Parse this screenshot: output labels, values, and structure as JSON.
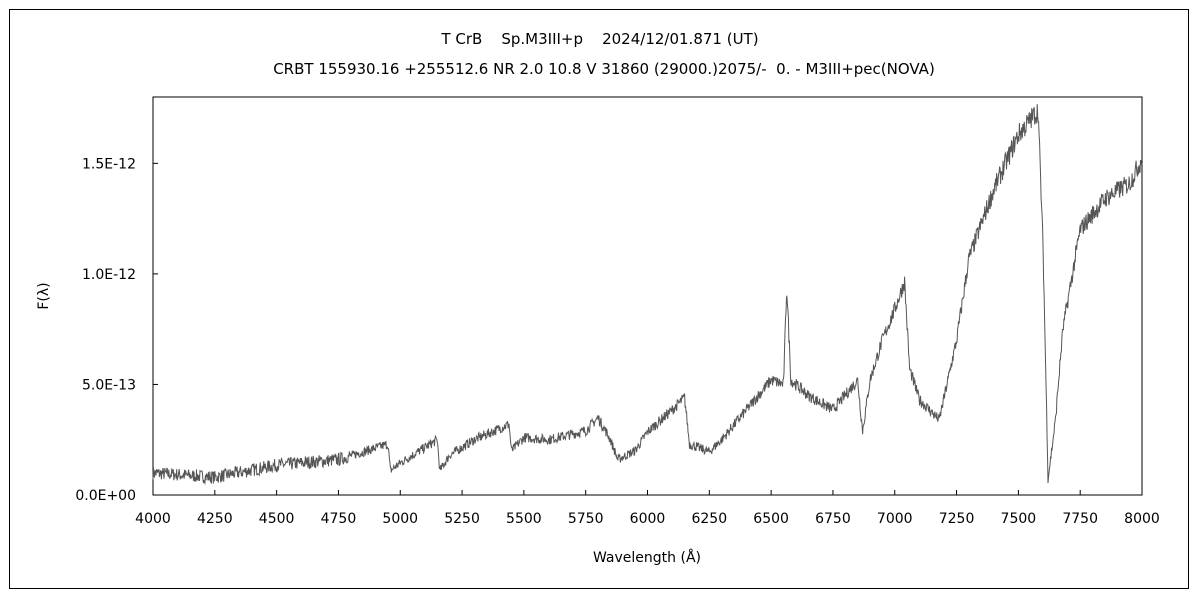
{
  "chart_data": {
    "type": "line",
    "title": "T CrB    Sp.M3III+p    2024/12/01.871 (UT)",
    "subtitle": "CRBT 155930.16 +255512.6 NR 2.0 10.8 V 31860 (29000.)2075/-  0. - M3III+pec(NOVA)",
    "xlabel": "Wavelength (Å)",
    "ylabel": "F(λ)",
    "xlim": [
      4000,
      8000
    ],
    "ylim": [
      0,
      1.8e-12
    ],
    "xticks": [
      "4000",
      "4250",
      "4500",
      "4750",
      "5000",
      "5250",
      "5500",
      "5750",
      "6000",
      "6250",
      "6500",
      "6750",
      "7000",
      "7250",
      "7500",
      "7750",
      "8000"
    ],
    "yticks": [
      {
        "value": 0,
        "label": "0.0E+00"
      },
      {
        "value": 5e-13,
        "label": "5.0E-13"
      },
      {
        "value": 1e-12,
        "label": "1.0E-12"
      },
      {
        "value": 1.5e-12,
        "label": "1.5E-12"
      }
    ],
    "grid": false,
    "line_color": "#555555",
    "series": [
      {
        "x": [
          4000,
          4250,
          4500,
          4750,
          4950,
          4960,
          5000,
          5150,
          5160,
          5200,
          5300,
          5440,
          5450,
          5500,
          5600,
          5750,
          5800,
          5850,
          5880,
          5950,
          6000,
          6100,
          6150,
          6170,
          6250,
          6300,
          6400,
          6500,
          6550,
          6563,
          6580,
          6650,
          6750,
          6850,
          6870,
          6900,
          6950,
          7000,
          7040,
          7060,
          7100,
          7180,
          7250,
          7300,
          7400,
          7500,
          7580,
          7600,
          7620,
          7650,
          7680,
          7750,
          7850,
          7950,
          8000
        ],
        "y": [
          1e-13,
          8e-14,
          1.35e-13,
          1.6e-13,
          2.3e-13,
          1.1e-13,
          1.45e-13,
          2.5e-13,
          1.1e-13,
          1.8e-13,
          2.5e-13,
          3.2e-13,
          2e-13,
          2.6e-13,
          2.5e-13,
          2.9e-13,
          3.5e-13,
          2.5e-13,
          1.6e-13,
          2e-13,
          2.85e-13,
          3.85e-13,
          4.4e-13,
          2.3e-13,
          1.95e-13,
          2.5e-13,
          3.85e-13,
          5.2e-13,
          5e-13,
          9.5e-13,
          5.2e-13,
          4.5e-13,
          3.85e-13,
          5.2e-13,
          2.9e-13,
          5.2e-13,
          7e-13,
          8.4e-13,
          9.65e-13,
          5.7e-13,
          4.3e-13,
          3.4e-13,
          7e-13,
          1.07e-12,
          1.38e-12,
          1.63e-12,
          1.74e-12,
          1.11e-12,
          7e-14,
          3.4e-13,
          7.5e-13,
          1.2e-12,
          1.34e-12,
          1.41e-12,
          1.52e-12
        ]
      }
    ]
  }
}
